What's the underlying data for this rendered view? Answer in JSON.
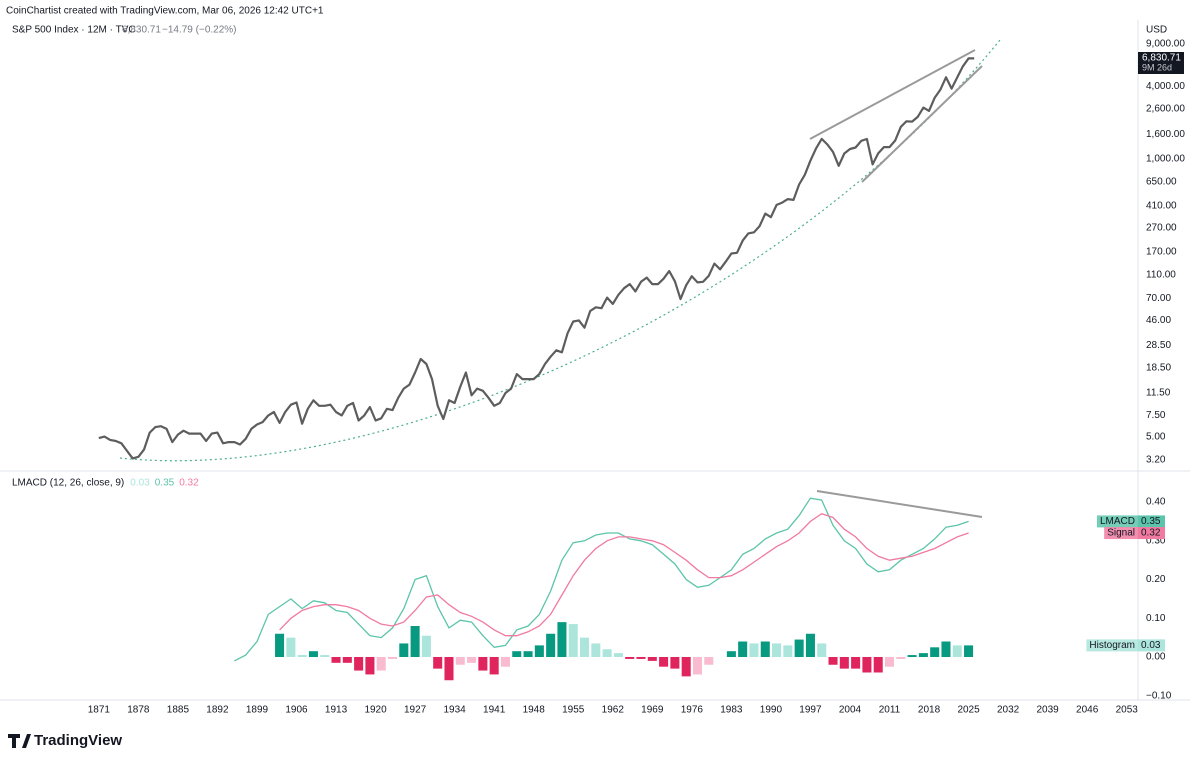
{
  "credit": "CoinChartist created with TradingView.com, Mar 06, 2026 12:42 UTC+1",
  "header": {
    "symbol": "S&P 500 Index · 12M · TVC",
    "last": "6,830.71",
    "change": "−14.79 (−0.22%)"
  },
  "currency": "USD",
  "price_tag": {
    "last": "6,830.71",
    "countdown": "9M 26d"
  },
  "brand": "TradingView",
  "chart_data": [
    {
      "type": "line",
      "log_scale": true,
      "grid": false,
      "color": "#5d5d5d",
      "x": [
        1871,
        1872,
        1873,
        1874,
        1875,
        1876,
        1877,
        1878,
        1879,
        1880,
        1881,
        1882,
        1883,
        1884,
        1885,
        1886,
        1887,
        1888,
        1889,
        1890,
        1891,
        1892,
        1893,
        1894,
        1895,
        1896,
        1897,
        1898,
        1899,
        1900,
        1901,
        1902,
        1903,
        1904,
        1905,
        1906,
        1907,
        1908,
        1909,
        1910,
        1911,
        1912,
        1913,
        1914,
        1915,
        1916,
        1917,
        1918,
        1919,
        1920,
        1921,
        1922,
        1923,
        1924,
        1925,
        1926,
        1927,
        1928,
        1929,
        1930,
        1931,
        1932,
        1933,
        1934,
        1935,
        1936,
        1937,
        1938,
        1939,
        1940,
        1941,
        1942,
        1943,
        1944,
        1945,
        1946,
        1947,
        1948,
        1949,
        1950,
        1951,
        1952,
        1953,
        1954,
        1955,
        1956,
        1957,
        1958,
        1959,
        1960,
        1961,
        1962,
        1963,
        1964,
        1965,
        1966,
        1967,
        1968,
        1969,
        1970,
        1971,
        1972,
        1973,
        1974,
        1975,
        1976,
        1977,
        1978,
        1979,
        1980,
        1981,
        1982,
        1983,
        1984,
        1985,
        1986,
        1987,
        1988,
        1989,
        1990,
        1991,
        1992,
        1993,
        1994,
        1995,
        1996,
        1997,
        1998,
        1999,
        2000,
        2001,
        2002,
        2003,
        2004,
        2005,
        2006,
        2007,
        2008,
        2009,
        2010,
        2011,
        2012,
        2013,
        2014,
        2015,
        2016,
        2017,
        2018,
        2019,
        2020,
        2021,
        2022,
        2023,
        2024,
        2025,
        2026
      ],
      "values": [
        4.86,
        5.0,
        4.7,
        4.6,
        4.4,
        3.8,
        3.3,
        3.4,
        3.9,
        5.4,
        6.0,
        6.1,
        5.8,
        4.5,
        5.2,
        5.6,
        5.3,
        5.3,
        5.3,
        4.6,
        5.3,
        5.4,
        4.4,
        4.5,
        4.5,
        4.3,
        4.8,
        5.8,
        6.3,
        6.6,
        7.5,
        8.0,
        6.5,
        8.0,
        9.2,
        9.6,
        6.4,
        8.5,
        10.0,
        9.0,
        9.0,
        9.2,
        8.0,
        7.5,
        9.0,
        9.5,
        6.8,
        7.5,
        8.8,
        6.8,
        7.1,
        8.5,
        8.3,
        10.5,
        12.5,
        13.5,
        17.0,
        22.0,
        20.0,
        15.0,
        9.0,
        7.0,
        10.0,
        9.5,
        13.0,
        17.0,
        11.0,
        12.5,
        12.0,
        10.5,
        9.0,
        9.5,
        11.5,
        12.5,
        16.5,
        15.0,
        15.0,
        15.0,
        16.5,
        20.0,
        23.0,
        26.0,
        25.0,
        36.0,
        45.0,
        46.0,
        40.0,
        55.0,
        59.0,
        58.0,
        71.0,
        63.0,
        75.0,
        85.0,
        92.0,
        80.0,
        96.0,
        104.0,
        92.0,
        92.0,
        102.0,
        118.0,
        97.0,
        69.0,
        90.0,
        107.0,
        95.0,
        96.0,
        108.0,
        136.0,
        122.0,
        141.0,
        165.0,
        167.0,
        211.0,
        242.0,
        247.0,
        278.0,
        353.0,
        330.0,
        417.0,
        436.0,
        466.0,
        459.0,
        616.0,
        741.0,
        970.0,
        1229.0,
        1469.0,
        1320.0,
        1148.0,
        880.0,
        1112.0,
        1212.0,
        1248.0,
        1418.0,
        1468.0,
        903.0,
        1115.0,
        1258.0,
        1258.0,
        1426.0,
        1848.0,
        2059.0,
        2044.0,
        2239.0,
        2674.0,
        2507.0,
        3231.0,
        3756.0,
        4766.0,
        3840.0,
        4770.0,
        5882.0,
        6846.0,
        6830.71
      ],
      "ylim": [
        2.644,
        11755
      ],
      "yticks": [
        {
          "value": 9000,
          "label": "9,000.00"
        },
        {
          "value": 4000,
          "label": "4,000.00"
        },
        {
          "value": 2600,
          "label": "2,600.00"
        },
        {
          "value": 1600,
          "label": "1,600.00"
        },
        {
          "value": 1000,
          "label": "1,000.00"
        },
        {
          "value": 650,
          "label": "650.00"
        },
        {
          "value": 410,
          "label": "410.00"
        },
        {
          "value": 270,
          "label": "270.00"
        },
        {
          "value": 170,
          "label": "170.00"
        },
        {
          "value": 110,
          "label": "110.00"
        },
        {
          "value": 70,
          "label": "70.00"
        },
        {
          "value": 46,
          "label": "46.00"
        },
        {
          "value": 28.5,
          "label": "28.50"
        },
        {
          "value": 18.5,
          "label": "18.50"
        },
        {
          "value": 11.5,
          "label": "11.50"
        },
        {
          "value": 7.5,
          "label": "7.50"
        },
        {
          "value": 5,
          "label": "5.00"
        },
        {
          "value": 3.2,
          "label": "3.20"
        }
      ]
    },
    {
      "type": "macd",
      "title": "LMACD (12, 26, close, 9)",
      "grid": false,
      "xlim": [
        1853.5,
        2055
      ],
      "xticks": [
        1871,
        1878,
        1885,
        1892,
        1899,
        1906,
        1913,
        1920,
        1927,
        1934,
        1941,
        1948,
        1955,
        1962,
        1969,
        1976,
        1983,
        1990,
        1997,
        2004,
        2011,
        2018,
        2025,
        2032,
        2039,
        2046,
        2053
      ],
      "x": [
        1895,
        1897,
        1899,
        1901,
        1903,
        1905,
        1907,
        1909,
        1911,
        1913,
        1915,
        1917,
        1919,
        1921,
        1923,
        1925,
        1927,
        1929,
        1931,
        1933,
        1935,
        1937,
        1939,
        1941,
        1943,
        1945,
        1947,
        1949,
        1951,
        1953,
        1955,
        1957,
        1959,
        1961,
        1963,
        1965,
        1967,
        1969,
        1971,
        1973,
        1975,
        1977,
        1979,
        1981,
        1983,
        1985,
        1987,
        1989,
        1991,
        1993,
        1995,
        1997,
        1999,
        2001,
        2003,
        2005,
        2007,
        2009,
        2011,
        2013,
        2015,
        2017,
        2019,
        2021,
        2023,
        2025
      ],
      "ylim": [
        -0.111,
        0.475
      ],
      "yticks": [
        {
          "value": 0.4,
          "label": "0.40"
        },
        {
          "value": 0.3,
          "label": "0.30"
        },
        {
          "value": 0.2,
          "label": "0.20"
        },
        {
          "value": 0.1,
          "label": "0.10"
        },
        {
          "value": 0,
          "label": "0.00"
        },
        {
          "value": -0.1,
          "label": "−0.10"
        }
      ],
      "series": [
        {
          "name": "LMACD",
          "type": "line",
          "color": "#5cc4aa",
          "values": [
            -0.01,
            0.005,
            0.04,
            0.11,
            0.13,
            0.15,
            0.125,
            0.145,
            0.14,
            0.12,
            0.115,
            0.085,
            0.055,
            0.05,
            0.075,
            0.125,
            0.2,
            0.21,
            0.13,
            0.075,
            0.095,
            0.09,
            0.055,
            0.025,
            0.03,
            0.07,
            0.08,
            0.11,
            0.17,
            0.25,
            0.295,
            0.3,
            0.315,
            0.32,
            0.32,
            0.305,
            0.3,
            0.29,
            0.265,
            0.24,
            0.2,
            0.18,
            0.185,
            0.205,
            0.225,
            0.265,
            0.28,
            0.305,
            0.32,
            0.33,
            0.365,
            0.41,
            0.405,
            0.34,
            0.3,
            0.28,
            0.24,
            0.22,
            0.225,
            0.25,
            0.265,
            0.28,
            0.305,
            0.335,
            0.34,
            0.35
          ]
        },
        {
          "name": "Signal",
          "type": "line",
          "color": "#f07aa0",
          "values": [
            null,
            null,
            null,
            null,
            0.07,
            0.1,
            0.12,
            0.13,
            0.135,
            0.135,
            0.13,
            0.12,
            0.1,
            0.085,
            0.08,
            0.09,
            0.12,
            0.155,
            0.16,
            0.135,
            0.115,
            0.105,
            0.09,
            0.07,
            0.055,
            0.055,
            0.065,
            0.08,
            0.11,
            0.16,
            0.21,
            0.25,
            0.28,
            0.3,
            0.31,
            0.31,
            0.305,
            0.3,
            0.29,
            0.27,
            0.25,
            0.225,
            0.205,
            0.205,
            0.21,
            0.225,
            0.245,
            0.265,
            0.285,
            0.3,
            0.32,
            0.35,
            0.37,
            0.36,
            0.33,
            0.31,
            0.28,
            0.26,
            0.25,
            0.255,
            0.26,
            0.27,
            0.28,
            0.295,
            0.31,
            0.32
          ]
        },
        {
          "name": "Histogram",
          "type": "histogram",
          "colors": [
            "#089981",
            "#ace5dc",
            "#e0245e",
            "#f8bbd0"
          ],
          "values": [
            null,
            null,
            null,
            null,
            0.06,
            0.05,
            0.005,
            0.015,
            0.005,
            -0.015,
            -0.015,
            -0.035,
            -0.045,
            -0.035,
            -0.005,
            0.035,
            0.08,
            0.055,
            -0.03,
            -0.06,
            -0.02,
            -0.015,
            -0.035,
            -0.045,
            -0.025,
            0.015,
            0.015,
            0.03,
            0.06,
            0.09,
            0.085,
            0.05,
            0.035,
            0.02,
            0.01,
            -0.005,
            -0.005,
            -0.01,
            -0.025,
            -0.03,
            -0.05,
            -0.045,
            -0.02,
            0,
            0.015,
            0.04,
            0.035,
            0.04,
            0.035,
            0.03,
            0.045,
            0.06,
            0.035,
            -0.02,
            -0.03,
            -0.03,
            -0.04,
            -0.04,
            -0.025,
            -0.005,
            0.005,
            0.01,
            0.025,
            0.04,
            0.03,
            0.03
          ]
        }
      ]
    }
  ]
}
